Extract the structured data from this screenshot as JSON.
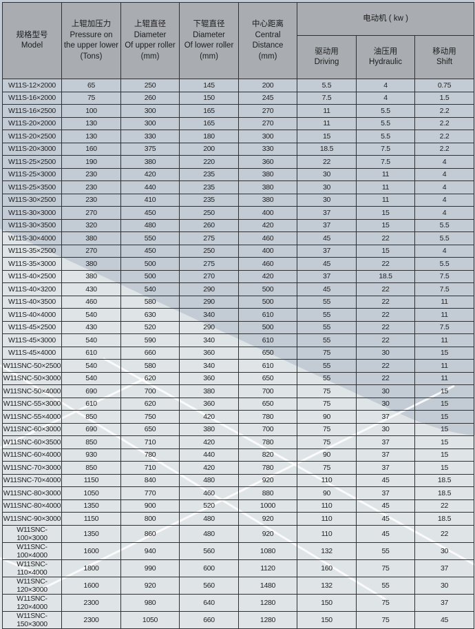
{
  "header": {
    "model": {
      "zh": "规格型号",
      "en": "Model"
    },
    "pressure": {
      "zh": "上辊加压力",
      "en1": "Pressure on",
      "en2": "the upper lower",
      "en3": "(Tons)"
    },
    "upper_diameter": {
      "zh": "上辊直径",
      "en1": "Diameter",
      "en2": "Of upper roller",
      "en3": "(mm)"
    },
    "lower_diameter": {
      "zh": "下辊直径",
      "en1": "Diameter",
      "en2": "Of lower roller",
      "en3": "(mm)"
    },
    "center_distance": {
      "zh": "中心距离",
      "en1": "Central",
      "en2": "Distance",
      "en3": "(mm)"
    },
    "motor": {
      "label": "电动机 ( kw )"
    },
    "driving": {
      "zh": "驱动用",
      "en": "Driving"
    },
    "hydraulic": {
      "zh": "油压用",
      "en": "Hydraulic"
    },
    "shift": {
      "zh": "移动用",
      "en": "Shift"
    }
  },
  "colors": {
    "header_bg": "#a9adb1",
    "row_blue": "#c3cbd5",
    "row_light": "#e1e5e7",
    "border": "#2d2f33"
  },
  "rows": [
    [
      "W11S-12×2000",
      "65",
      "250",
      "145",
      "200",
      "5.5",
      "4",
      "0.75"
    ],
    [
      "W11S-16×2000",
      "75",
      "260",
      "150",
      "245",
      "7.5",
      "4",
      "1.5"
    ],
    [
      "W11S-16×2500",
      "100",
      "300",
      "165",
      "270",
      "11",
      "5.5",
      "2.2"
    ],
    [
      "W11S-20×2000",
      "130",
      "300",
      "165",
      "270",
      "11",
      "5.5",
      "2.2"
    ],
    [
      "W11S-20×2500",
      "130",
      "330",
      "180",
      "300",
      "15",
      "5.5",
      "2.2"
    ],
    [
      "W11S-20×3000",
      "160",
      "375",
      "200",
      "330",
      "18.5",
      "7.5",
      "2.2"
    ],
    [
      "W11S-25×2500",
      "190",
      "380",
      "220",
      "360",
      "22",
      "7.5",
      "4"
    ],
    [
      "W11S-25×3000",
      "230",
      "420",
      "235",
      "380",
      "30",
      "11",
      "4"
    ],
    [
      "W11S-25×3500",
      "230",
      "440",
      "235",
      "380",
      "30",
      "11",
      "4"
    ],
    [
      "W11S-30×2500",
      "230",
      "410",
      "235",
      "380",
      "30",
      "11",
      "4"
    ],
    [
      "W11S-30×3000",
      "270",
      "450",
      "250",
      "400",
      "37",
      "15",
      "4"
    ],
    [
      "W11S-30×3500",
      "320",
      "480",
      "260",
      "420",
      "37",
      "15",
      "5.5"
    ],
    [
      "W11S-30×4000",
      "380",
      "550",
      "275",
      "460",
      "45",
      "22",
      "5.5"
    ],
    [
      "W11S-35×2500",
      "270",
      "450",
      "250",
      "400",
      "37",
      "15",
      "4"
    ],
    [
      "W11S-35×3000",
      "380",
      "500",
      "275",
      "460",
      "45",
      "22",
      "5.5"
    ],
    [
      "W11S-40×2500",
      "380",
      "500",
      "270",
      "420",
      "37",
      "18.5",
      "7.5"
    ],
    [
      "W11S-40×3200",
      "430",
      "540",
      "290",
      "500",
      "45",
      "22",
      "7.5"
    ],
    [
      "W11S-40×3500",
      "460",
      "580",
      "290",
      "500",
      "55",
      "22",
      "11"
    ],
    [
      "W11S-40×4000",
      "540",
      "630",
      "340",
      "610",
      "55",
      "22",
      "11"
    ],
    [
      "W11S-45×2500",
      "430",
      "520",
      "290",
      "500",
      "55",
      "22",
      "7.5"
    ],
    [
      "W11S-45×3000",
      "540",
      "590",
      "340",
      "610",
      "55",
      "22",
      "11"
    ],
    [
      "W11S-45×4000",
      "610",
      "660",
      "360",
      "650",
      "75",
      "30",
      "15"
    ],
    [
      "W11SNC-50×2500",
      "540",
      "580",
      "340",
      "610",
      "55",
      "22",
      "11"
    ],
    [
      "W11SNC-50×3000",
      "540",
      "620",
      "360",
      "650",
      "55",
      "22",
      "11"
    ],
    [
      "W11SNC-50×4000",
      "690",
      "700",
      "380",
      "700",
      "75",
      "30",
      "15"
    ],
    [
      "W11SNC-55×3000",
      "610",
      "620",
      "360",
      "650",
      "75",
      "30",
      "15"
    ],
    [
      "W11SNC-55×4000",
      "850",
      "750",
      "420",
      "780",
      "90",
      "37",
      "15"
    ],
    [
      "W11SNC-60×3000",
      "690",
      "650",
      "380",
      "700",
      "75",
      "30",
      "15"
    ],
    [
      "W11SNC-60×3500",
      "850",
      "710",
      "420",
      "780",
      "75",
      "37",
      "15"
    ],
    [
      "W11SNC-60×4000",
      "930",
      "780",
      "440",
      "820",
      "90",
      "37",
      "15"
    ],
    [
      "W11SNC-70×3000",
      "850",
      "710",
      "420",
      "780",
      "75",
      "37",
      "15"
    ],
    [
      "W11SNC-70×4000",
      "1150",
      "840",
      "480",
      "920",
      "110",
      "45",
      "18.5"
    ],
    [
      "W11SNC-80×3000",
      "1050",
      "770",
      "460",
      "880",
      "90",
      "37",
      "18.5"
    ],
    [
      "W11SNC-80×4000",
      "1350",
      "900",
      "520",
      "1000",
      "110",
      "45",
      "22"
    ],
    [
      "W11SNC-90×3000",
      "1150",
      "800",
      "480",
      "920",
      "110",
      "45",
      "18.5"
    ],
    [
      "W11SNC-100×3000",
      "1350",
      "860",
      "480",
      "920",
      "110",
      "45",
      "22"
    ],
    [
      "W11SNC-100×4000",
      "1600",
      "940",
      "560",
      "1080",
      "132",
      "55",
      "30"
    ],
    [
      "W11SNC-110×4000",
      "1800",
      "990",
      "600",
      "1120",
      "160",
      "75",
      "37"
    ],
    [
      "W11SNC-120×3000",
      "1600",
      "920",
      "560",
      "1480",
      "132",
      "55",
      "30"
    ],
    [
      "W11SNC-120×4000",
      "2300",
      "980",
      "640",
      "1280",
      "150",
      "75",
      "37"
    ],
    [
      "W11SNC-150×3000",
      "2300",
      "1050",
      "660",
      "1280",
      "150",
      "75",
      "45"
    ]
  ]
}
